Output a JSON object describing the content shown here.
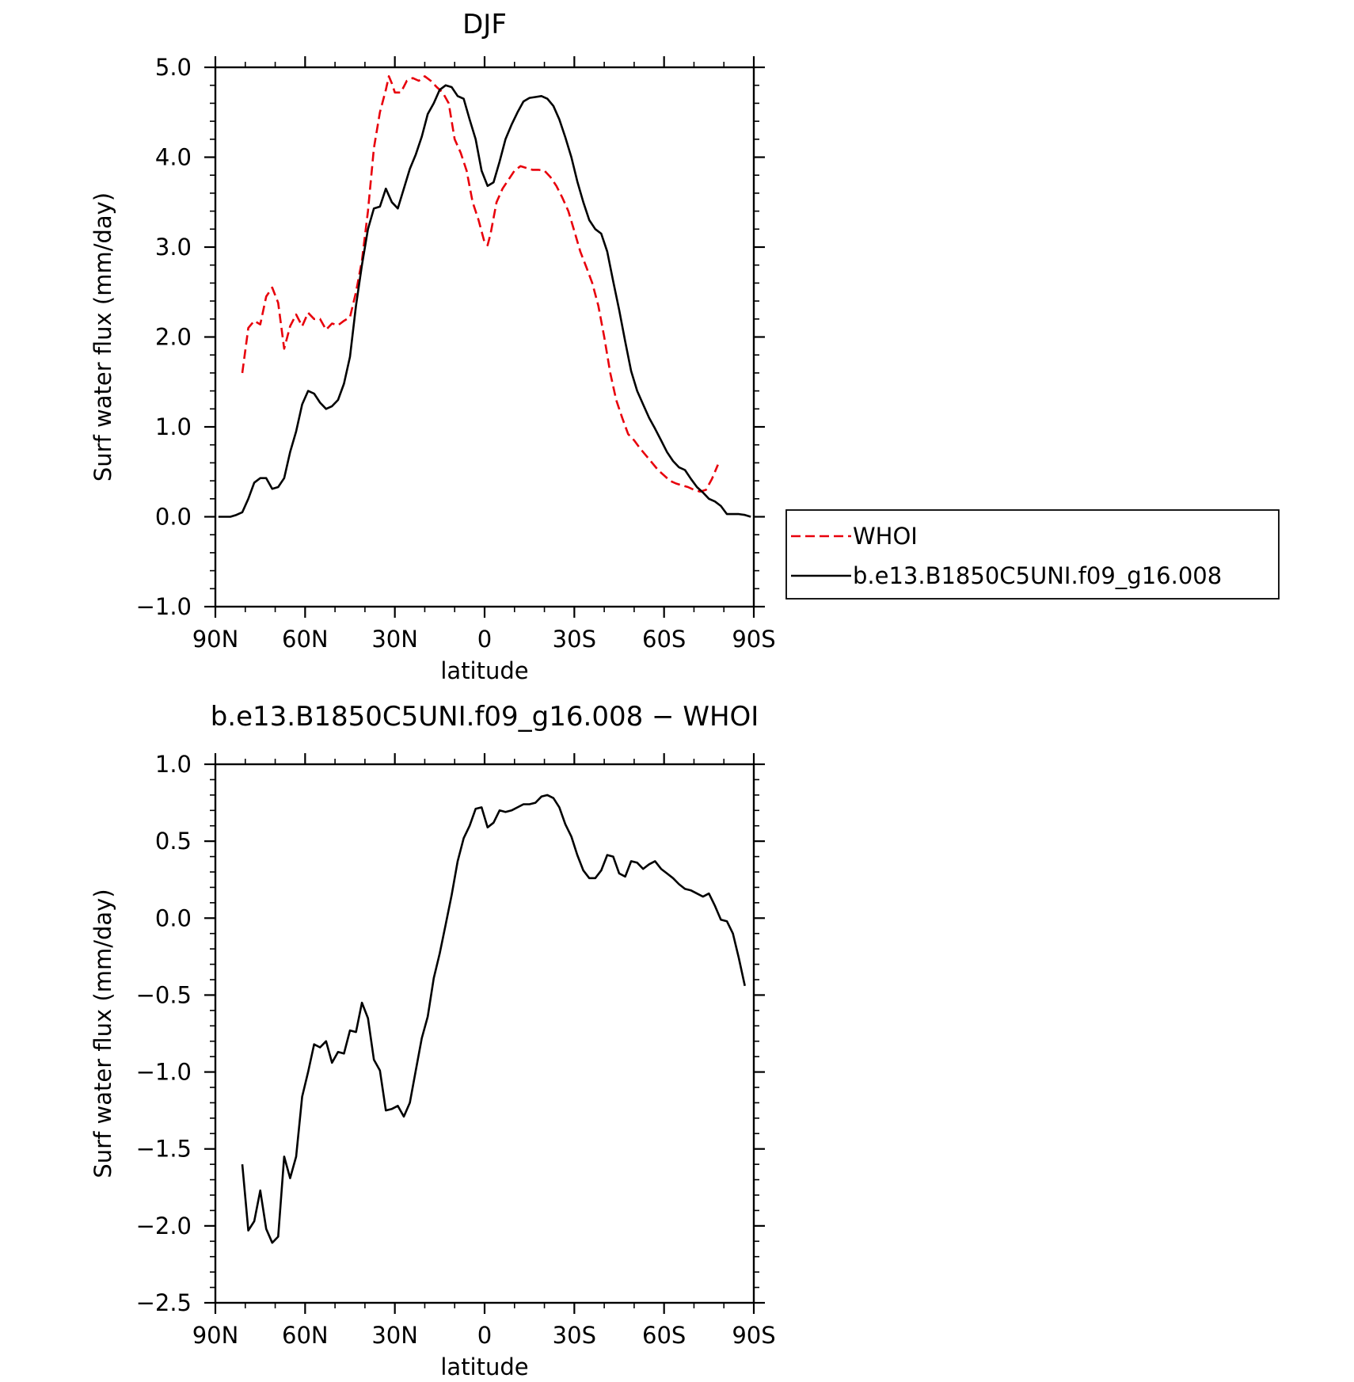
{
  "chart_data": [
    {
      "type": "line",
      "title": "DJF",
      "xlabel": "latitude",
      "ylabel": "Surf water flux (mm/day)",
      "xlim": [
        90,
        -90
      ],
      "ylim": [
        -1.0,
        5.0
      ],
      "xticks": [
        90,
        60,
        30,
        0,
        -30,
        -60,
        -90
      ],
      "xtick_labels": [
        "90N",
        "60N",
        "30N",
        "0",
        "30S",
        "60S",
        "90S"
      ],
      "yticks": [
        -1.0,
        0.0,
        1.0,
        2.0,
        3.0,
        4.0,
        5.0
      ],
      "ytick_labels": [
        "−1.0",
        "0.0",
        "1.0",
        "2.0",
        "3.0",
        "4.0",
        "5.0"
      ],
      "grid": false,
      "legend_position": "right",
      "series": [
        {
          "name": "WHOI",
          "color": "#e8000b",
          "dash": "dashed",
          "points": [
            [
              81,
              1.6
            ],
            [
              79,
              2.1
            ],
            [
              77,
              2.18
            ],
            [
              75,
              2.14
            ],
            [
              73,
              2.45
            ],
            [
              71,
              2.55
            ],
            [
              69,
              2.38
            ],
            [
              67,
              1.87
            ],
            [
              65,
              2.12
            ],
            [
              63,
              2.25
            ],
            [
              61,
              2.12
            ],
            [
              59,
              2.27
            ],
            [
              57,
              2.2
            ],
            [
              55,
              2.2
            ],
            [
              53,
              2.08
            ],
            [
              51,
              2.15
            ],
            [
              49,
              2.13
            ],
            [
              47,
              2.18
            ],
            [
              45,
              2.22
            ],
            [
              43,
              2.5
            ],
            [
              41,
              2.85
            ],
            [
              39,
              3.4
            ],
            [
              37,
              4.1
            ],
            [
              35,
              4.5
            ],
            [
              33,
              4.75
            ],
            [
              32,
              4.9
            ],
            [
              31,
              4.82
            ],
            [
              30,
              4.72
            ],
            [
              28,
              4.72
            ],
            [
              26,
              4.85
            ],
            [
              24,
              4.88
            ],
            [
              22,
              4.85
            ],
            [
              20,
              4.9
            ],
            [
              18,
              4.85
            ],
            [
              16,
              4.78
            ],
            [
              14,
              4.72
            ],
            [
              12,
              4.6
            ],
            [
              10,
              4.2
            ],
            [
              8,
              4.05
            ],
            [
              6,
              3.85
            ],
            [
              4,
              3.5
            ],
            [
              2,
              3.3
            ],
            [
              0,
              3.05
            ],
            [
              -1,
              3.02
            ],
            [
              -2,
              3.15
            ],
            [
              -4,
              3.5
            ],
            [
              -6,
              3.65
            ],
            [
              -8,
              3.75
            ],
            [
              -10,
              3.85
            ],
            [
              -12,
              3.9
            ],
            [
              -14,
              3.88
            ],
            [
              -16,
              3.86
            ],
            [
              -18,
              3.86
            ],
            [
              -20,
              3.85
            ],
            [
              -22,
              3.78
            ],
            [
              -24,
              3.68
            ],
            [
              -26,
              3.55
            ],
            [
              -28,
              3.4
            ],
            [
              -30,
              3.18
            ],
            [
              -32,
              2.95
            ],
            [
              -34,
              2.78
            ],
            [
              -36,
              2.6
            ],
            [
              -38,
              2.35
            ],
            [
              -40,
              2.0
            ],
            [
              -42,
              1.6
            ],
            [
              -44,
              1.3
            ],
            [
              -46,
              1.1
            ],
            [
              -48,
              0.92
            ],
            [
              -50,
              0.85
            ],
            [
              -52,
              0.76
            ],
            [
              -54,
              0.68
            ],
            [
              -56,
              0.6
            ],
            [
              -58,
              0.52
            ],
            [
              -60,
              0.46
            ],
            [
              -62,
              0.4
            ],
            [
              -64,
              0.37
            ],
            [
              -66,
              0.35
            ],
            [
              -68,
              0.33
            ],
            [
              -70,
              0.3
            ],
            [
              -72,
              0.28
            ],
            [
              -74,
              0.3
            ],
            [
              -76,
              0.42
            ],
            [
              -78,
              0.58
            ]
          ]
        },
        {
          "name": "b.e13.B1850C5UNI.f09_g16.008",
          "color": "#000000",
          "dash": "solid",
          "points": [
            [
              89,
              0.0
            ],
            [
              87,
              0.0
            ],
            [
              85,
              0.0
            ],
            [
              83,
              0.02
            ],
            [
              81,
              0.05
            ],
            [
              79,
              0.2
            ],
            [
              77,
              0.38
            ],
            [
              75,
              0.43
            ],
            [
              73,
              0.43
            ],
            [
              71,
              0.31
            ],
            [
              69,
              0.33
            ],
            [
              67,
              0.43
            ],
            [
              65,
              0.72
            ],
            [
              63,
              0.95
            ],
            [
              61,
              1.25
            ],
            [
              59,
              1.4
            ],
            [
              57,
              1.37
            ],
            [
              55,
              1.27
            ],
            [
              53,
              1.2
            ],
            [
              51,
              1.23
            ],
            [
              49,
              1.3
            ],
            [
              47,
              1.48
            ],
            [
              45,
              1.78
            ],
            [
              43,
              2.35
            ],
            [
              41,
              2.8
            ],
            [
              39,
              3.2
            ],
            [
              37,
              3.43
            ],
            [
              35,
              3.45
            ],
            [
              33,
              3.65
            ],
            [
              31,
              3.5
            ],
            [
              29,
              3.43
            ],
            [
              27,
              3.65
            ],
            [
              25,
              3.87
            ],
            [
              23,
              4.03
            ],
            [
              21,
              4.23
            ],
            [
              19,
              4.48
            ],
            [
              17,
              4.6
            ],
            [
              15,
              4.75
            ],
            [
              13,
              4.8
            ],
            [
              11,
              4.78
            ],
            [
              9,
              4.68
            ],
            [
              7,
              4.65
            ],
            [
              5,
              4.42
            ],
            [
              3,
              4.2
            ],
            [
              1,
              3.85
            ],
            [
              -1,
              3.68
            ],
            [
              -3,
              3.72
            ],
            [
              -5,
              3.95
            ],
            [
              -7,
              4.2
            ],
            [
              -9,
              4.36
            ],
            [
              -11,
              4.5
            ],
            [
              -13,
              4.62
            ],
            [
              -15,
              4.66
            ],
            [
              -17,
              4.67
            ],
            [
              -19,
              4.68
            ],
            [
              -21,
              4.65
            ],
            [
              -23,
              4.57
            ],
            [
              -25,
              4.42
            ],
            [
              -27,
              4.22
            ],
            [
              -29,
              4.0
            ],
            [
              -31,
              3.73
            ],
            [
              -33,
              3.5
            ],
            [
              -35,
              3.3
            ],
            [
              -37,
              3.2
            ],
            [
              -39,
              3.15
            ],
            [
              -41,
              2.95
            ],
            [
              -43,
              2.62
            ],
            [
              -45,
              2.3
            ],
            [
              -47,
              1.95
            ],
            [
              -49,
              1.62
            ],
            [
              -51,
              1.4
            ],
            [
              -53,
              1.25
            ],
            [
              -55,
              1.1
            ],
            [
              -57,
              0.98
            ],
            [
              -59,
              0.85
            ],
            [
              -61,
              0.72
            ],
            [
              -63,
              0.62
            ],
            [
              -65,
              0.55
            ],
            [
              -67,
              0.52
            ],
            [
              -69,
              0.42
            ],
            [
              -71,
              0.33
            ],
            [
              -73,
              0.27
            ],
            [
              -75,
              0.2
            ],
            [
              -77,
              0.17
            ],
            [
              -79,
              0.12
            ],
            [
              -81,
              0.03
            ],
            [
              -83,
              0.03
            ],
            [
              -85,
              0.03
            ],
            [
              -87,
              0.02
            ],
            [
              -89,
              0.0
            ]
          ]
        }
      ]
    },
    {
      "type": "line",
      "title": "b.e13.B1850C5UNI.f09_g16.008 − WHOI",
      "xlabel": "latitude",
      "ylabel": "Surf water flux (mm/day)",
      "xlim": [
        90,
        -90
      ],
      "ylim": [
        -2.5,
        1.0
      ],
      "xticks": [
        90,
        60,
        30,
        0,
        -30,
        -60,
        -90
      ],
      "xtick_labels": [
        "90N",
        "60N",
        "30N",
        "0",
        "30S",
        "60S",
        "90S"
      ],
      "yticks": [
        -2.5,
        -2.0,
        -1.5,
        -1.0,
        -0.5,
        0.0,
        0.5,
        1.0
      ],
      "ytick_labels": [
        "−2.5",
        "−2.0",
        "−1.5",
        "−1.0",
        "−0.5",
        "0.0",
        "0.5",
        "1.0"
      ],
      "grid": false,
      "series": [
        {
          "color": "#000000",
          "dash": "solid",
          "points": [
            [
              81,
              -1.6
            ],
            [
              79,
              -2.03
            ],
            [
              77,
              -1.97
            ],
            [
              75,
              -1.77
            ],
            [
              73,
              -2.02
            ],
            [
              71,
              -2.11
            ],
            [
              69,
              -2.07
            ],
            [
              67,
              -1.55
            ],
            [
              65,
              -1.69
            ],
            [
              63,
              -1.55
            ],
            [
              61,
              -1.16
            ],
            [
              59,
              -1.0
            ],
            [
              57,
              -0.82
            ],
            [
              55,
              -0.84
            ],
            [
              53,
              -0.8
            ],
            [
              51,
              -0.94
            ],
            [
              49,
              -0.87
            ],
            [
              47,
              -0.88
            ],
            [
              45,
              -0.73
            ],
            [
              43,
              -0.74
            ],
            [
              41,
              -0.55
            ],
            [
              39,
              -0.65
            ],
            [
              37,
              -0.92
            ],
            [
              35,
              -0.99
            ],
            [
              33,
              -1.25
            ],
            [
              31,
              -1.24
            ],
            [
              29,
              -1.22
            ],
            [
              27,
              -1.29
            ],
            [
              25,
              -1.2
            ],
            [
              23,
              -0.99
            ],
            [
              21,
              -0.78
            ],
            [
              19,
              -0.64
            ],
            [
              17,
              -0.39
            ],
            [
              15,
              -0.23
            ],
            [
              13,
              -0.04
            ],
            [
              11,
              0.15
            ],
            [
              9,
              0.37
            ],
            [
              7,
              0.52
            ],
            [
              5,
              0.6
            ],
            [
              3,
              0.71
            ],
            [
              1,
              0.72
            ],
            [
              -1,
              0.59
            ],
            [
              -3,
              0.62
            ],
            [
              -5,
              0.7
            ],
            [
              -7,
              0.69
            ],
            [
              -9,
              0.7
            ],
            [
              -11,
              0.72
            ],
            [
              -13,
              0.74
            ],
            [
              -15,
              0.74
            ],
            [
              -17,
              0.75
            ],
            [
              -19,
              0.79
            ],
            [
              -21,
              0.8
            ],
            [
              -23,
              0.78
            ],
            [
              -25,
              0.72
            ],
            [
              -27,
              0.61
            ],
            [
              -29,
              0.53
            ],
            [
              -31,
              0.41
            ],
            [
              -33,
              0.31
            ],
            [
              -35,
              0.26
            ],
            [
              -37,
              0.26
            ],
            [
              -39,
              0.31
            ],
            [
              -41,
              0.41
            ],
            [
              -43,
              0.4
            ],
            [
              -45,
              0.29
            ],
            [
              -47,
              0.27
            ],
            [
              -49,
              0.37
            ],
            [
              -51,
              0.36
            ],
            [
              -53,
              0.32
            ],
            [
              -55,
              0.35
            ],
            [
              -57,
              0.37
            ],
            [
              -59,
              0.32
            ],
            [
              -61,
              0.29
            ],
            [
              -63,
              0.26
            ],
            [
              -65,
              0.22
            ],
            [
              -67,
              0.19
            ],
            [
              -69,
              0.18
            ],
            [
              -71,
              0.16
            ],
            [
              -73,
              0.14
            ],
            [
              -75,
              0.16
            ],
            [
              -77,
              0.08
            ],
            [
              -79,
              -0.01
            ],
            [
              -81,
              -0.02
            ],
            [
              -83,
              -0.1
            ],
            [
              -85,
              -0.26
            ],
            [
              -87,
              -0.44
            ]
          ]
        }
      ]
    }
  ]
}
